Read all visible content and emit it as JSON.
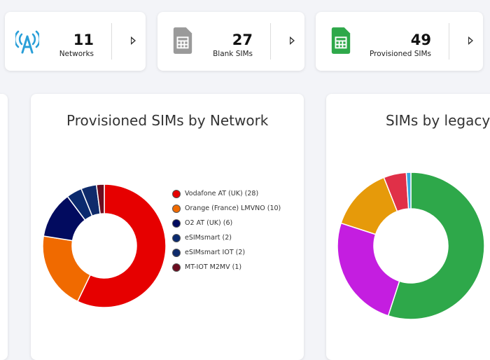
{
  "stats": [
    {
      "value": "11",
      "label": "Networks",
      "icon": "antenna-icon"
    },
    {
      "value": "27",
      "label": "Blank SIMs",
      "icon": "sim-card-icon"
    },
    {
      "value": "49",
      "label": "Provisioned SIMs",
      "icon": "sim-card-icon"
    }
  ],
  "colors": {
    "network_icon": "#2a9fd8",
    "blank_sim": "#9a9a9a",
    "provisioned_sim": "#2ea84a"
  },
  "panels": {
    "network": {
      "title": "Provisioned SIMs by Network"
    },
    "legacy": {
      "title": "SIMs by legacy"
    }
  },
  "chart_data": [
    {
      "type": "pie",
      "title": "Provisioned SIMs by Network",
      "donut": true,
      "legend_position": "right",
      "series": [
        {
          "label": "Vodafone AT (UK) (28)",
          "value": 28,
          "color": "#e60000"
        },
        {
          "label": "Orange (France) LMVNO (10)",
          "value": 10,
          "color": "#f06a00"
        },
        {
          "label": "O2 AT (UK) (6)",
          "value": 6,
          "color": "#020b5f"
        },
        {
          "label": "eSIMsmart (2)",
          "value": 2,
          "color": "#0b2a6e"
        },
        {
          "label": "eSIMsmart IOT (2)",
          "value": 2,
          "color": "#0f2b6b"
        },
        {
          "label": "MT-IOT M2MV (1)",
          "value": 1,
          "color": "#6b0d1f"
        }
      ]
    },
    {
      "type": "pie",
      "title": "SIMs by legacy",
      "donut": true,
      "series": [
        {
          "value": 55,
          "color": "#2ea84a"
        },
        {
          "value": 25,
          "color": "#c41ee0"
        },
        {
          "value": 14,
          "color": "#e69a0a"
        },
        {
          "value": 5,
          "color": "#e03048"
        },
        {
          "value": 1,
          "color": "#38a8e0"
        }
      ]
    }
  ]
}
